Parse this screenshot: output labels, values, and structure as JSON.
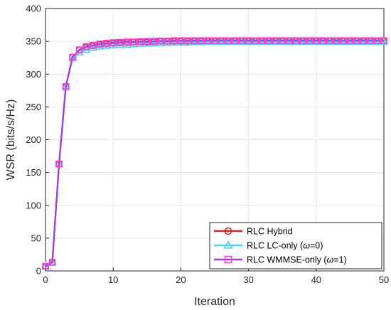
{
  "chart_data": {
    "type": "line",
    "title": "",
    "xlabel": "Iteration",
    "ylabel": "WSR (bits/s/Hz)",
    "xlim": [
      0,
      50
    ],
    "ylim": [
      0,
      400
    ],
    "x_ticks": [
      "0",
      "10",
      "20",
      "30",
      "40",
      "50"
    ],
    "y_ticks": [
      "0",
      "50",
      "100",
      "150",
      "200",
      "250",
      "300",
      "350",
      "400"
    ],
    "grid": true,
    "legend_position": "bottom-right",
    "x": [
      0,
      1,
      2,
      3,
      4,
      5,
      6,
      7,
      8,
      9,
      10,
      11,
      12,
      13,
      14,
      15,
      16,
      17,
      18,
      19,
      20,
      21,
      22,
      23,
      24,
      25,
      26,
      27,
      28,
      29,
      30,
      31,
      32,
      33,
      34,
      35,
      36,
      37,
      38,
      39,
      40,
      41,
      42,
      43,
      44,
      45,
      46,
      47,
      48,
      49,
      50
    ],
    "series": [
      {
        "name": "RLC Hybrid",
        "color": "#d62424",
        "marker": "circle",
        "values": [
          7,
          13,
          163,
          281,
          326,
          337,
          341,
          343,
          345,
          346,
          347,
          347.5,
          348,
          348.5,
          349,
          349,
          349.5,
          350,
          350,
          350,
          350,
          350,
          350,
          350,
          350,
          350,
          350,
          350,
          350,
          350,
          350,
          350,
          350,
          350,
          350,
          350,
          350,
          350,
          350,
          350,
          350,
          350,
          350,
          350,
          350,
          350,
          350,
          350,
          350,
          350,
          350
        ]
      },
      {
        "name": "RLC LC-only (ω=0)",
        "label_prefix": "RLC LC-only (",
        "label_symbol": "ω",
        "label_suffix": "=0)",
        "color": "#4fd2ee",
        "marker": "triangle",
        "values": [
          7,
          13,
          163,
          281,
          324,
          333,
          337,
          340,
          342,
          343,
          344,
          344.5,
          345,
          345.5,
          346,
          346.5,
          347,
          347,
          347.5,
          348,
          348,
          348,
          348.5,
          348.5,
          349,
          349,
          349,
          349,
          349,
          349,
          349,
          349,
          349,
          349,
          349,
          349,
          349,
          349,
          349,
          349,
          349,
          349,
          349,
          349,
          349,
          349,
          349,
          349,
          349,
          349,
          349
        ]
      },
      {
        "name": "RLC WMMSE-only (ω=1)",
        "label_prefix": "RLC WMMSE-only (",
        "label_symbol": "ω",
        "label_suffix": "=1)",
        "color": "#a63bdc",
        "marker_color": "#ff3be0",
        "marker": "square",
        "values": [
          7,
          13,
          163,
          281,
          326,
          337,
          342,
          344,
          346,
          347,
          348,
          348.5,
          349,
          349,
          349.5,
          350,
          350,
          350.5,
          350.5,
          351,
          351,
          351,
          351,
          351,
          351,
          351,
          351,
          351,
          351,
          351,
          351,
          351,
          351,
          351,
          351,
          351,
          351,
          351,
          351,
          351,
          351,
          351,
          351,
          351,
          351,
          351,
          351,
          351,
          351,
          351,
          351
        ]
      }
    ]
  }
}
